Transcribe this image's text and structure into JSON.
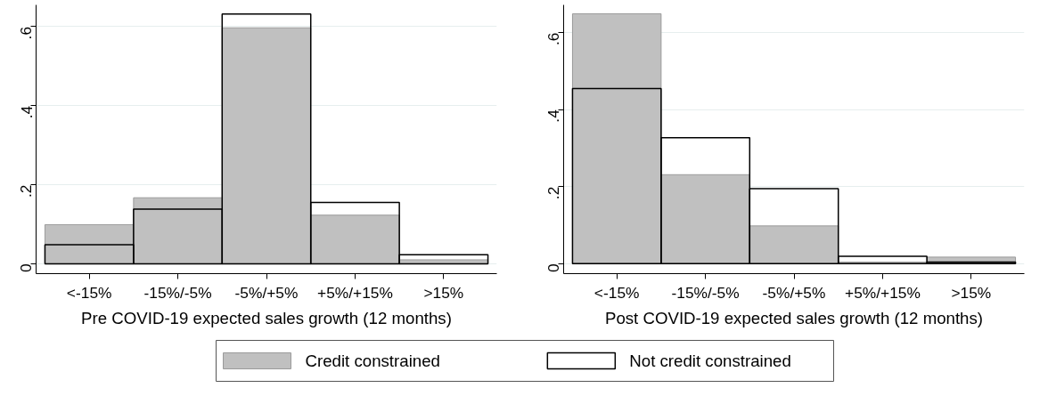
{
  "chart_data": [
    {
      "type": "bar",
      "xlabel": "Pre COVID-19 expected sales growth (12 months)",
      "categories": [
        "<-15%",
        "-15%/-5%",
        "-5%/+5%",
        "+5%/+15%",
        ">15%"
      ],
      "series": [
        {
          "name": "Credit constrained",
          "color": "#c0c0c0",
          "values": [
            0.099,
            0.167,
            0.597,
            0.123,
            0.01
          ]
        },
        {
          "name": "Not credit constrained",
          "color": "#000000",
          "values": [
            0.048,
            0.138,
            0.632,
            0.155,
            0.023
          ]
        }
      ],
      "ylim": [
        -0.025,
        0.655
      ],
      "yticks": [
        0,
        {
          "value": 0.2,
          "label": ".2"
        },
        {
          "value": 0.4,
          "label": ".4"
        },
        {
          "value": 0.6,
          "label": ".6"
        }
      ],
      "grid": "y",
      "legend": "bottom"
    },
    {
      "type": "bar",
      "xlabel": "Post COVID-19 expected sales growth (12 months)",
      "categories": [
        "<-15%",
        "-15%/-5%",
        "-5%/+5%",
        "+5%/+15%",
        ">15%"
      ],
      "series": [
        {
          "color": "#c0c0c0",
          "values": [
            0.649,
            0.231,
            0.098,
            0.004,
            0.017
          ]
        },
        {
          "color": "#000000",
          "values": [
            0.455,
            0.327,
            0.195,
            0.019,
            0.004
          ]
        }
      ],
      "ylim": [
        -0.026,
        0.672
      ],
      "yticks": [
        0,
        {
          "value": 0.2,
          "label": ".2"
        },
        {
          "value": 0.4,
          "label": ".4"
        },
        {
          "value": 0.6,
          "label": ".6"
        }
      ],
      "grid": "y"
    }
  ]
}
